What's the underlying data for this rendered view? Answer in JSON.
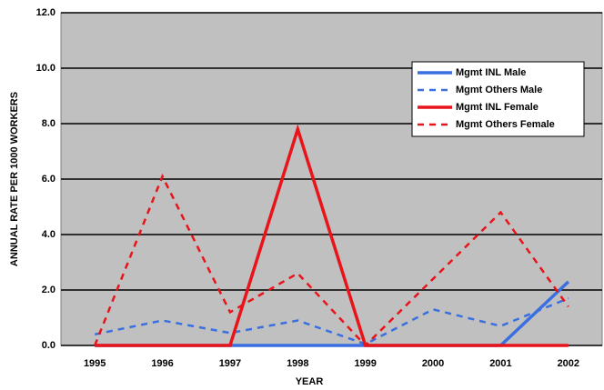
{
  "chart_data": {
    "type": "line",
    "xlabel": "YEAR",
    "ylabel": "ANNUAL RATE PER 1000 WORKERS",
    "categories": [
      "1995",
      "1996",
      "1997",
      "1998",
      "1999",
      "2000",
      "2001",
      "2002"
    ],
    "series": [
      {
        "name": "Mgmt INL Male",
        "color": "#3a6fe0",
        "line_style": "solid",
        "values": [
          0,
          0,
          0,
          0,
          0,
          0,
          0,
          2.3
        ]
      },
      {
        "name": "Mgmt Others Male",
        "color": "#3a6fe0",
        "line_style": "dashed",
        "values": [
          0.4,
          0.9,
          0.45,
          0.9,
          0.05,
          1.3,
          0.7,
          1.7
        ]
      },
      {
        "name": "Mgmt INL Female",
        "color": "#e8141a",
        "line_style": "solid",
        "values": [
          0,
          0,
          0,
          7.8,
          0,
          0,
          0,
          0
        ]
      },
      {
        "name": "Mgmt Others Female",
        "color": "#e8141a",
        "line_style": "dashed",
        "values": [
          0,
          6.1,
          1.2,
          2.6,
          0,
          2.4,
          4.8,
          1.4
        ]
      }
    ],
    "ylim": [
      0,
      12
    ],
    "yticks": [
      {
        "value": 0,
        "label": "0.0"
      },
      {
        "value": 2,
        "label": "2.0"
      },
      {
        "value": 4,
        "label": "4.0"
      },
      {
        "value": 6,
        "label": "6.0"
      },
      {
        "value": 8,
        "label": "8.0"
      },
      {
        "value": 10,
        "label": "10.0"
      },
      {
        "value": 12,
        "label": "12.0"
      }
    ],
    "grid": true,
    "legend": "upper right",
    "plot_background": "#c0c0c0"
  }
}
